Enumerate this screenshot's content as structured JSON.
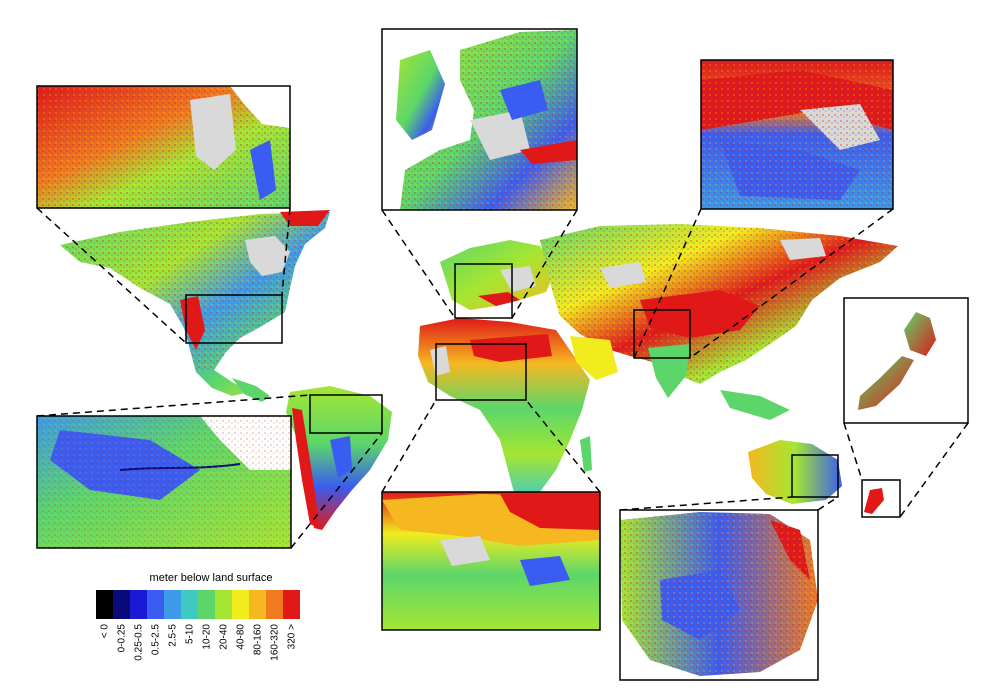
{
  "figure": {
    "legend": {
      "title": "meter below land surface",
      "classes": [
        {
          "label": "< 0",
          "color": "#000000"
        },
        {
          "label": "0-0.25",
          "color": "#0a0a7a"
        },
        {
          "label": "0.25-0.5",
          "color": "#1a1ad6"
        },
        {
          "label": "0.5-2.5",
          "color": "#3b5cf0"
        },
        {
          "label": "2.5-5",
          "color": "#3d9ae8"
        },
        {
          "label": "5-10",
          "color": "#3fc9c0"
        },
        {
          "label": "10-20",
          "color": "#5cd66a"
        },
        {
          "label": "20-40",
          "color": "#a5e632"
        },
        {
          "label": "40-80",
          "color": "#f2ec1e"
        },
        {
          "label": "80-160",
          "color": "#f5b820"
        },
        {
          "label": "160-320",
          "color": "#f07a1e"
        },
        {
          "label": "320 >",
          "color": "#e01818"
        }
      ]
    },
    "no_data_color": "#d9d9d9",
    "inset_regions": [
      "western-usa",
      "western-europe",
      "himalaya-tibet",
      "new-zealand",
      "amazon-basin",
      "west-africa",
      "eastern-australia"
    ]
  }
}
